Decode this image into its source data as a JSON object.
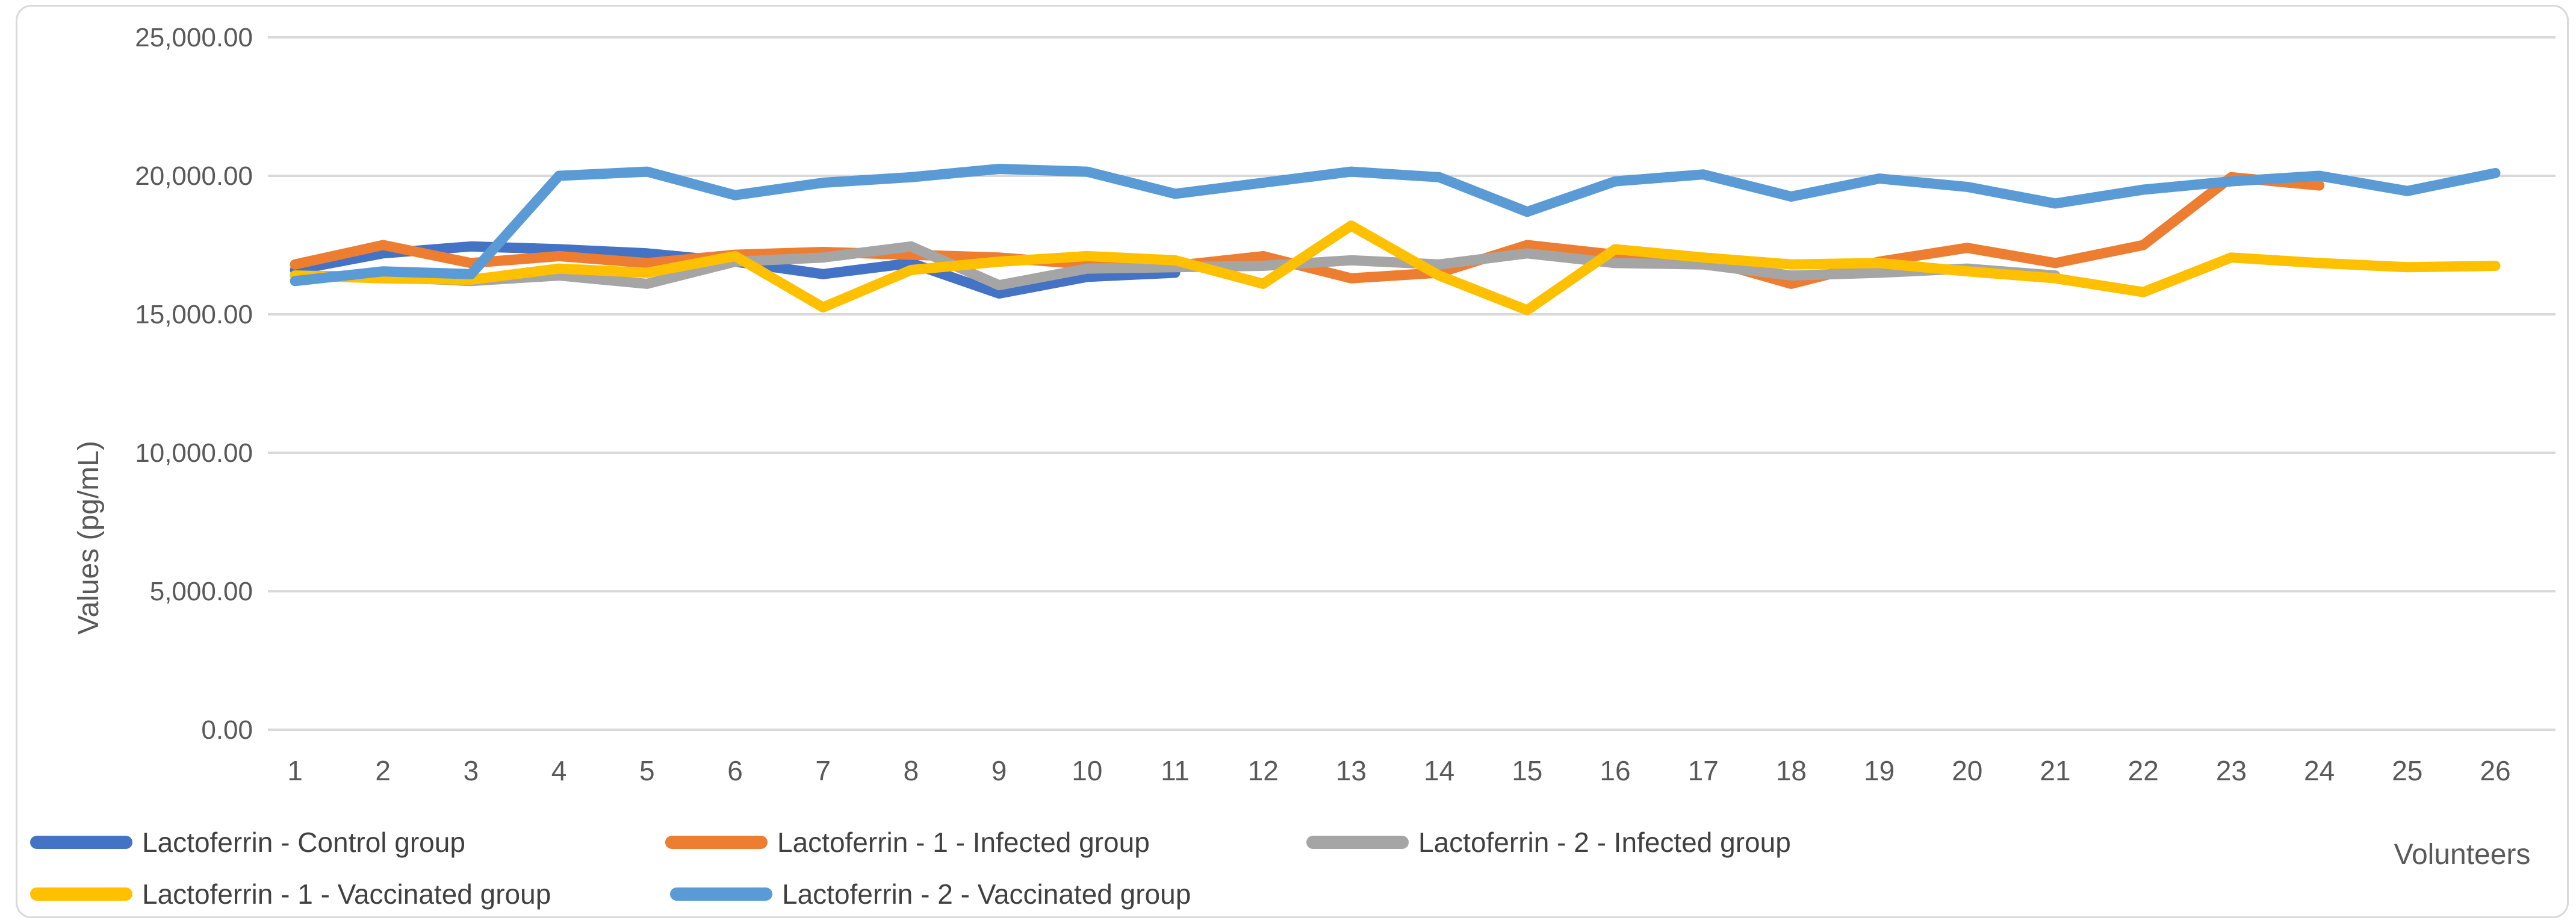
{
  "chart_data": {
    "type": "line",
    "title": "",
    "xlabel": "Volunteers",
    "ylabel": "Values (pg/mL)",
    "x_categories": [
      "1",
      "2",
      "3",
      "4",
      "5",
      "6",
      "7",
      "8",
      "9",
      "10",
      "11",
      "12",
      "13",
      "14",
      "15",
      "16",
      "17",
      "18",
      "19",
      "20",
      "21",
      "22",
      "23",
      "24",
      "25",
      "26"
    ],
    "ylim": [
      0,
      25000
    ],
    "y_ticks": [
      {
        "value": 25000,
        "label": "25,000.00"
      },
      {
        "value": 20000,
        "label": "20,000.00"
      },
      {
        "value": 15000,
        "label": "15,000.00"
      },
      {
        "value": 10000,
        "label": "10,000.00"
      },
      {
        "value": 5000,
        "label": "5,000.00"
      },
      {
        "value": 0,
        "label": "0.00"
      }
    ],
    "grid": true,
    "legend_position": "bottom-left",
    "series": [
      {
        "name": "Lactoferrin - Control group",
        "color": "#4472C4",
        "values": [
          16600,
          17200,
          17450,
          17350,
          17200,
          16900,
          16450,
          16850,
          15750,
          16350,
          16500
        ]
      },
      {
        "name": "Lactoferrin - 1 - Infected group",
        "color": "#ED7D31",
        "values": [
          16800,
          17500,
          16850,
          17100,
          16850,
          17150,
          17250,
          17150,
          17050,
          16800,
          16750,
          17100,
          16300,
          16500,
          17500,
          17150,
          17000,
          16100,
          16900,
          17400,
          16850,
          17500,
          19950,
          19650
        ]
      },
      {
        "name": "Lactoferrin - 2 - Infected group",
        "color": "#A5A5A5",
        "values": [
          16400,
          16350,
          16200,
          16400,
          16100,
          16900,
          17050,
          17450,
          16050,
          16650,
          16700,
          16750,
          16950,
          16800,
          17200,
          16850,
          16800,
          16400,
          16500,
          16650,
          16400
        ]
      },
      {
        "name": "Lactoferrin - 1 - Vaccinated group",
        "color": "#FFC000",
        "values": [
          16400,
          16300,
          16250,
          16650,
          16500,
          17100,
          15250,
          16600,
          16900,
          17100,
          16950,
          16100,
          18200,
          16400,
          15150,
          17350,
          17050,
          16800,
          16850,
          16550,
          16300,
          15800,
          17050,
          16850,
          16700,
          16750
        ]
      },
      {
        "name": "Lactoferrin - 2 - Vaccinated group",
        "color": "#5B9BD5",
        "values": [
          16200,
          16550,
          16450,
          20000,
          20150,
          19300,
          19750,
          19950,
          20250,
          20150,
          19350,
          19750,
          20150,
          19950,
          18700,
          19800,
          20050,
          19250,
          19900,
          19600,
          19000,
          19500,
          19800,
          20000,
          19450,
          20100
        ]
      }
    ]
  },
  "colors": {
    "background": "#FFFFFF",
    "frame_border": "#D9D9D9",
    "gridline": "#D9D9D9",
    "axis_text": "#595959",
    "legend_text": "#404040"
  }
}
